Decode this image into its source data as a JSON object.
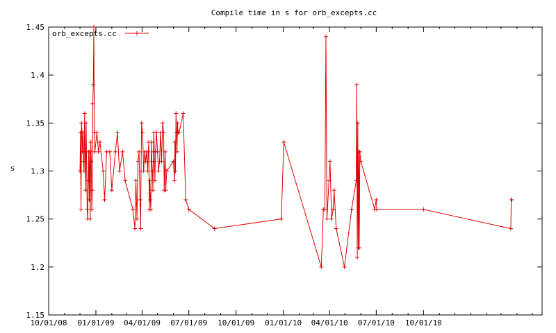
{
  "chart_data": {
    "type": "line",
    "title": "Compile time in s for orb_excepts.cc",
    "xlabel": "",
    "ylabel": "s",
    "ylim": [
      1.15,
      1.45
    ],
    "xlim": [
      "2008-10-01",
      "2011-05-20"
    ],
    "grid": false,
    "legend_position": "top-left",
    "y_ticks": [
      "1.15",
      "1.2",
      "1.25",
      "1.3",
      "1.35",
      "1.4",
      "1.45"
    ],
    "y_tick_values": [
      1.15,
      1.2,
      1.25,
      1.3,
      1.35,
      1.4,
      1.45
    ],
    "x_ticks": [
      "10/01/08",
      "01/01/09",
      "04/01/09",
      "07/01/09",
      "10/01/09",
      "01/01/10",
      "04/01/10",
      "07/01/10",
      "10/01/10"
    ],
    "x_tick_dates": [
      "2008-10-01",
      "2009-01-01",
      "2009-04-01",
      "2009-07-01",
      "2009-10-01",
      "2010-01-01",
      "2010-04-01",
      "2010-07-01",
      "2010-10-01"
    ],
    "colors": {
      "series": "#e00000",
      "axis": "#000000",
      "background": "#ffffff"
    },
    "series": [
      {
        "name": "orb_excepts.cc",
        "points": [
          [
            "2008-12-01",
            1.3
          ],
          [
            "2008-12-02",
            1.34
          ],
          [
            "2008-12-03",
            1.26
          ],
          [
            "2008-12-04",
            1.35
          ],
          [
            "2008-12-05",
            1.34
          ],
          [
            "2008-12-06",
            1.32
          ],
          [
            "2008-12-07",
            1.34
          ],
          [
            "2008-12-08",
            1.31
          ],
          [
            "2008-12-09",
            1.3
          ],
          [
            "2008-12-10",
            1.36
          ],
          [
            "2008-12-11",
            1.32
          ],
          [
            "2008-12-12",
            1.28
          ],
          [
            "2008-12-13",
            1.35
          ],
          [
            "2008-12-15",
            1.26
          ],
          [
            "2008-12-16",
            1.25
          ],
          [
            "2008-12-17",
            1.29
          ],
          [
            "2008-12-18",
            1.32
          ],
          [
            "2008-12-19",
            1.27
          ],
          [
            "2008-12-20",
            1.32
          ],
          [
            "2008-12-21",
            1.25
          ],
          [
            "2008-12-22",
            1.33
          ],
          [
            "2008-12-23",
            1.31
          ],
          [
            "2008-12-24",
            1.26
          ],
          [
            "2008-12-25",
            1.28
          ],
          [
            "2008-12-26",
            1.37
          ],
          [
            "2008-12-27",
            1.39
          ],
          [
            "2008-12-28",
            1.45
          ],
          [
            "2008-12-29",
            1.34
          ],
          [
            "2008-12-30",
            1.32
          ],
          [
            "2009-01-03",
            1.34
          ],
          [
            "2009-01-06",
            1.32
          ],
          [
            "2009-01-09",
            1.33
          ],
          [
            "2009-01-15",
            1.3
          ],
          [
            "2009-01-18",
            1.27
          ],
          [
            "2009-01-22",
            1.32
          ],
          [
            "2009-01-28",
            1.32
          ],
          [
            "2009-02-01",
            1.28
          ],
          [
            "2009-02-08",
            1.32
          ],
          [
            "2009-02-12",
            1.34
          ],
          [
            "2009-02-16",
            1.3
          ],
          [
            "2009-02-22",
            1.32
          ],
          [
            "2009-02-27",
            1.29
          ],
          [
            "2009-03-14",
            1.26
          ],
          [
            "2009-03-18",
            1.24
          ],
          [
            "2009-03-20",
            1.29
          ],
          [
            "2009-03-22",
            1.25
          ],
          [
            "2009-03-24",
            1.31
          ],
          [
            "2009-03-26",
            1.32
          ],
          [
            "2009-03-28",
            1.27
          ],
          [
            "2009-03-29",
            1.24
          ],
          [
            "2009-03-30",
            1.3
          ],
          [
            "2009-03-31",
            1.35
          ],
          [
            "2009-04-02",
            1.34
          ],
          [
            "2009-04-04",
            1.3
          ],
          [
            "2009-04-06",
            1.32
          ],
          [
            "2009-04-08",
            1.31
          ],
          [
            "2009-04-10",
            1.32
          ],
          [
            "2009-04-12",
            1.3
          ],
          [
            "2009-04-13",
            1.32
          ],
          [
            "2009-04-14",
            1.33
          ],
          [
            "2009-04-15",
            1.26
          ],
          [
            "2009-04-16",
            1.29
          ],
          [
            "2009-04-17",
            1.27
          ],
          [
            "2009-04-18",
            1.26
          ],
          [
            "2009-04-19",
            1.33
          ],
          [
            "2009-04-20",
            1.31
          ],
          [
            "2009-04-21",
            1.3
          ],
          [
            "2009-04-22",
            1.28
          ],
          [
            "2009-04-23",
            1.32
          ],
          [
            "2009-04-24",
            1.34
          ],
          [
            "2009-04-25",
            1.31
          ],
          [
            "2009-04-26",
            1.29
          ],
          [
            "2009-04-27",
            1.32
          ],
          [
            "2009-04-29",
            1.34
          ],
          [
            "2009-05-01",
            1.32
          ],
          [
            "2009-05-03",
            1.3
          ],
          [
            "2009-05-05",
            1.31
          ],
          [
            "2009-05-07",
            1.34
          ],
          [
            "2009-05-09",
            1.31
          ],
          [
            "2009-05-11",
            1.35
          ],
          [
            "2009-05-13",
            1.34
          ],
          [
            "2009-05-14",
            1.28
          ],
          [
            "2009-05-16",
            1.32
          ],
          [
            "2009-05-17",
            1.28
          ],
          [
            "2009-05-19",
            1.3
          ],
          [
            "2009-06-01",
            1.31
          ],
          [
            "2009-06-03",
            1.29
          ],
          [
            "2009-06-04",
            1.33
          ],
          [
            "2009-06-05",
            1.3
          ],
          [
            "2009-06-06",
            1.36
          ],
          [
            "2009-06-07",
            1.34
          ],
          [
            "2009-06-08",
            1.32
          ],
          [
            "2009-06-09",
            1.35
          ],
          [
            "2009-06-10",
            1.34
          ],
          [
            "2009-06-12",
            1.34
          ],
          [
            "2009-06-20",
            1.36
          ],
          [
            "2009-06-25",
            1.27
          ],
          [
            "2009-07-01",
            1.26
          ],
          [
            "2009-08-20",
            1.24
          ],
          [
            "2009-12-28",
            1.25
          ],
          [
            "2010-01-02",
            1.33
          ],
          [
            "2010-03-16",
            1.2
          ],
          [
            "2010-03-20",
            1.26
          ],
          [
            "2010-03-23",
            1.26
          ],
          [
            "2010-03-25",
            1.44
          ],
          [
            "2010-03-27",
            1.25
          ],
          [
            "2010-03-31",
            1.29
          ],
          [
            "2010-04-02",
            1.31
          ],
          [
            "2010-04-05",
            1.25
          ],
          [
            "2010-04-08",
            1.26
          ],
          [
            "2010-04-10",
            1.28
          ],
          [
            "2010-04-14",
            1.24
          ],
          [
            "2010-04-30",
            1.2
          ],
          [
            "2010-05-14",
            1.26
          ],
          [
            "2010-05-23",
            1.29
          ],
          [
            "2010-05-24",
            1.39
          ],
          [
            "2010-05-25",
            1.21
          ],
          [
            "2010-05-26",
            1.35
          ],
          [
            "2010-05-27",
            1.22
          ],
          [
            "2010-05-28",
            1.32
          ],
          [
            "2010-05-29",
            1.22
          ],
          [
            "2010-05-30",
            1.32
          ],
          [
            "2010-06-01",
            1.31
          ],
          [
            "2010-06-28",
            1.26
          ],
          [
            "2010-07-01",
            1.27
          ],
          [
            "2010-07-02",
            1.26
          ],
          [
            "2010-10-01",
            1.26
          ],
          [
            "2011-03-20",
            1.24
          ],
          [
            "2011-03-21",
            1.27
          ],
          [
            "2011-03-22",
            1.27
          ]
        ]
      }
    ]
  }
}
